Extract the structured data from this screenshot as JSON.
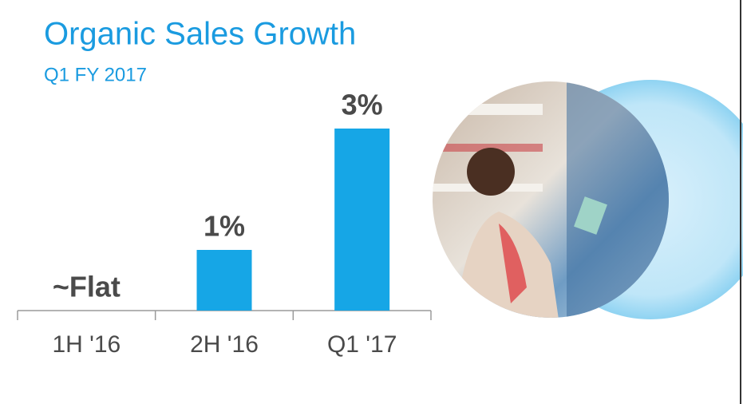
{
  "chart_data": {
    "type": "bar",
    "title": "Organic Sales Growth",
    "subtitle": "Q1 FY 2017",
    "categories": [
      "1H '16",
      "2H '16",
      "Q1 '17"
    ],
    "values": [
      0,
      1,
      3
    ],
    "value_labels": [
      "~Flat",
      "1%",
      "3%"
    ],
    "color": "#16a6e6"
  }
}
